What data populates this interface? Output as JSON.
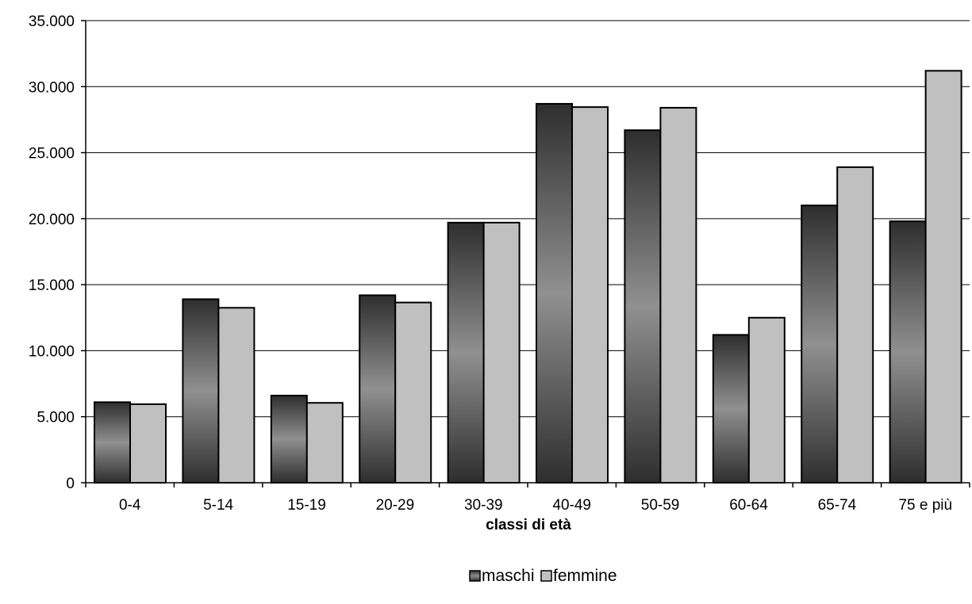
{
  "chart_data": {
    "type": "bar",
    "categories": [
      "0-4",
      "5-14",
      "15-19",
      "20-29",
      "30-39",
      "40-49",
      "50-59",
      "60-64",
      "65-74",
      "75 e più"
    ],
    "series": [
      {
        "name": "maschi",
        "values": [
          6100,
          13900,
          6600,
          14200,
          19700,
          28700,
          26700,
          11200,
          21000,
          19800
        ]
      },
      {
        "name": "femmine",
        "values": [
          5950,
          13250,
          6050,
          13650,
          19700,
          28450,
          28400,
          12500,
          23900,
          31200
        ]
      }
    ],
    "xlabel": "classi di età",
    "ylabel": "",
    "ylim": [
      0,
      35000
    ],
    "yticks": [
      0,
      5000,
      10000,
      15000,
      20000,
      25000,
      30000,
      35000
    ],
    "ytick_labels": [
      "0",
      "5.000",
      "10.000",
      "15.000",
      "20.000",
      "25.000",
      "30.000",
      "35.000"
    ],
    "grid": true,
    "legend_position": "bottom-center",
    "colors": {
      "maschi": "#8c8c8c",
      "maschi_dark": "#303030",
      "femmine": "#c0c0c0"
    }
  }
}
